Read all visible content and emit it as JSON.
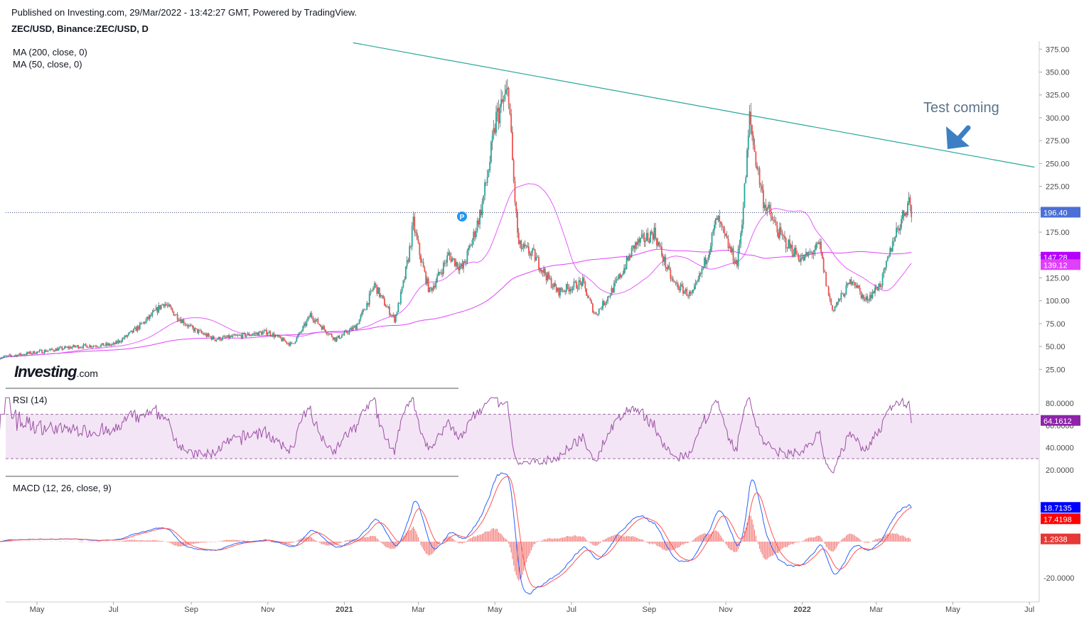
{
  "header": {
    "published": "Published on Investing.com, 29/Mar/2022 - 13:42:27 GMT, Powered by TradingView.",
    "symbol": "ZEC/USD, Binance:ZEC/USD, D"
  },
  "indicators": {
    "ma200_label": "MA (200, close, 0)",
    "ma50_label": "MA (50, close, 0)",
    "rsi_label": "RSI (14)",
    "macd_label": "MACD (12, 26, close, 9)"
  },
  "logo": {
    "text": "Investing",
    "suffix": ".com"
  },
  "annotation": {
    "text": "Test coming"
  },
  "colors": {
    "up": "#26a69a",
    "down": "#ef5350",
    "trend": "#26a69a",
    "ma": "#e040fb",
    "rsi": "#9c4fa6",
    "rsi_band": "#f3e5f5",
    "macd": "#2962ff",
    "signal": "#ff5252",
    "hist": "#ef5350",
    "arrow": "#3d7fc4",
    "annotation_text": "#5b7389"
  },
  "chart_data": {
    "type": "candlestick",
    "price_axis": {
      "ticks": [
        25,
        50,
        75,
        100,
        125,
        150,
        175,
        200,
        225,
        250,
        275,
        300,
        325,
        350,
        375
      ],
      "range": [
        6,
        385
      ]
    },
    "rsi_axis": {
      "ticks": [
        "20.0000",
        "40.0000",
        "60.0000",
        "80.0000"
      ],
      "band": [
        30,
        70
      ],
      "range": [
        15,
        85
      ]
    },
    "macd_axis": {
      "ticks": [
        "-20.0000"
      ],
      "range": [
        -40,
        40
      ]
    },
    "x_ticks": [
      "May",
      "Jul",
      "Sep",
      "Nov",
      "2021",
      "Mar",
      "May",
      "Jul",
      "Sep",
      "Nov",
      "2022",
      "Mar",
      "May",
      "Jul"
    ],
    "price_path": [
      [
        "2020-04-01",
        38
      ],
      [
        "2020-05-01",
        44
      ],
      [
        "2020-06-01",
        50
      ],
      [
        "2020-07-01",
        52
      ],
      [
        "2020-08-10",
        98
      ],
      [
        "2020-09-01",
        70
      ],
      [
        "2020-09-20",
        58
      ],
      [
        "2020-11-01",
        66
      ],
      [
        "2020-11-20",
        52
      ],
      [
        "2020-12-05",
        85
      ],
      [
        "2020-12-25",
        58
      ],
      [
        "2021-01-10",
        72
      ],
      [
        "2021-01-25",
        118
      ],
      [
        "2021-02-10",
        80
      ],
      [
        "2021-02-25",
        185
      ],
      [
        "2021-03-10",
        110
      ],
      [
        "2021-03-25",
        150
      ],
      [
        "2021-04-05",
        135
      ],
      [
        "2021-04-20",
        200
      ],
      [
        "2021-05-02",
        300
      ],
      [
        "2021-05-12",
        330
      ],
      [
        "2021-05-20",
        160
      ],
      [
        "2021-06-01",
        150
      ],
      [
        "2021-06-20",
        110
      ],
      [
        "2021-07-10",
        120
      ],
      [
        "2021-07-20",
        85
      ],
      [
        "2021-08-20",
        160
      ],
      [
        "2021-09-05",
        175
      ],
      [
        "2021-09-20",
        120
      ],
      [
        "2021-10-05",
        105
      ],
      [
        "2021-10-25",
        190
      ],
      [
        "2021-11-10",
        140
      ],
      [
        "2021-11-20",
        300
      ],
      [
        "2021-12-01",
        210
      ],
      [
        "2021-12-15",
        170
      ],
      [
        "2022-01-01",
        145
      ],
      [
        "2022-01-15",
        160
      ],
      [
        "2022-01-25",
        90
      ],
      [
        "2022-02-10",
        125
      ],
      [
        "2022-02-20",
        100
      ],
      [
        "2022-03-05",
        120
      ],
      [
        "2022-03-15",
        170
      ],
      [
        "2022-03-27",
        210
      ],
      [
        "2022-03-29",
        196.4
      ]
    ],
    "trendline": [
      [
        "2021-01-08",
        382
      ],
      [
        "2022-07-05",
        246
      ]
    ],
    "last_price": 196.4,
    "ma200": {
      "label": "MA (200, close, 0)",
      "last": 147.28
    },
    "ma50": {
      "label": "MA (50, close, 0)",
      "last": 139.12
    },
    "rsi_last": 64.1612,
    "macd_last": 18.7135,
    "signal_last": 17.4198,
    "hist_last": 1.2938
  }
}
